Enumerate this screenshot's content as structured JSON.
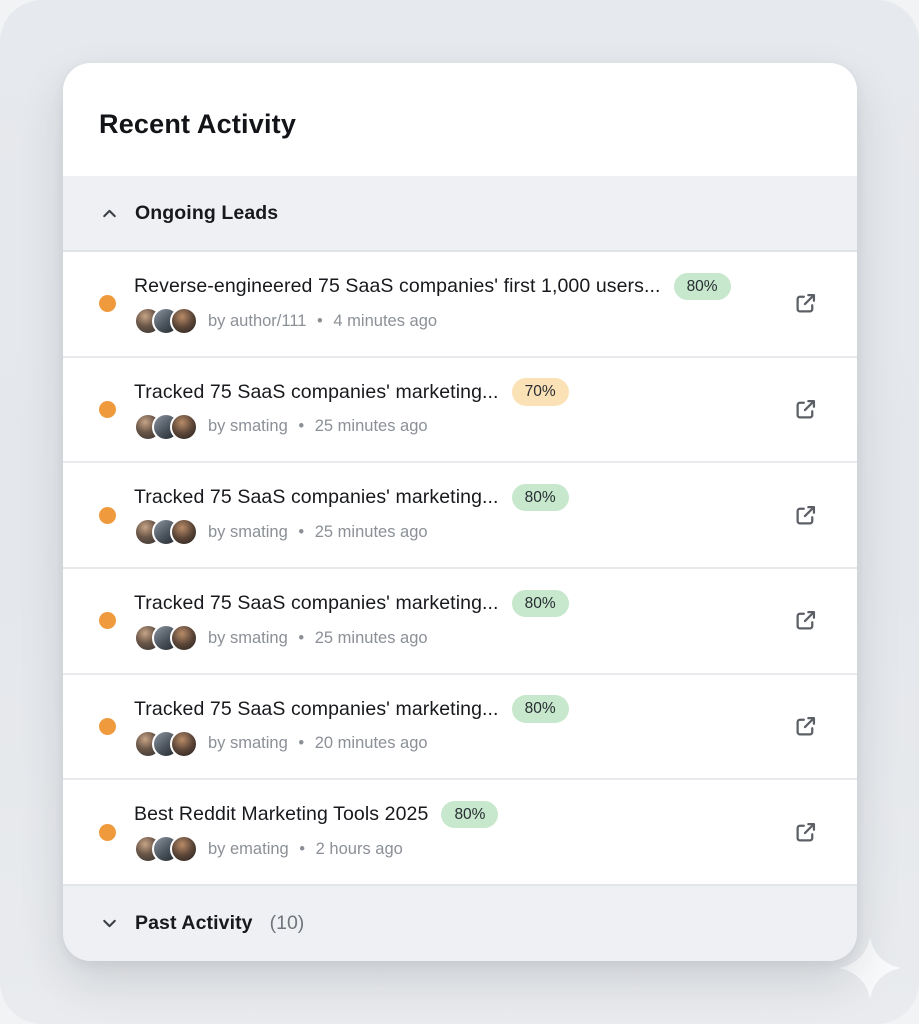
{
  "header": {
    "title": "Recent Activity"
  },
  "sections": {
    "ongoing": {
      "label": "Ongoing Leads"
    },
    "past": {
      "label": "Past Activity",
      "count": "(10)"
    }
  },
  "bullet": "•",
  "items": [
    {
      "title": "Reverse-engineered 75 SaaS companies' first 1,000 users...",
      "badge": {
        "label": "80%",
        "tone": "green"
      },
      "author": "by author/111",
      "time": "4 minutes ago",
      "avatar_count": 3
    },
    {
      "title": "Tracked 75 SaaS companies' marketing...",
      "badge": {
        "label": "70%",
        "tone": "orange"
      },
      "author": "by smating",
      "time": "25 minutes ago",
      "avatar_count": 3
    },
    {
      "title": "Tracked 75 SaaS companies' marketing...",
      "badge": {
        "label": "80%",
        "tone": "green"
      },
      "author": "by smating",
      "time": "25 minutes ago",
      "avatar_count": 3
    },
    {
      "title": "Tracked 75 SaaS companies' marketing...",
      "badge": {
        "label": "80%",
        "tone": "green"
      },
      "author": "by smating",
      "time": "25 minutes ago",
      "avatar_count": 3
    },
    {
      "title": "Tracked 75 SaaS companies' marketing...",
      "badge": {
        "label": "80%",
        "tone": "green"
      },
      "author": "by smating",
      "time": "20 minutes ago",
      "avatar_count": 3
    },
    {
      "title": "Best Reddit Marketing Tools 2025",
      "badge": {
        "label": "80%",
        "tone": "green"
      },
      "author": "by emating",
      "time": "2 hours ago",
      "avatar_count": 3
    }
  ],
  "colors": {
    "status_dot_orange": "#f09a3e",
    "badge_green_bg": "#c7e8cc",
    "badge_orange_bg": "#fbe2b6",
    "section_band_bg": "#eef0f4",
    "card_bg": "#ffffff",
    "title_text": "#17191d",
    "muted_text": "#8b9097"
  },
  "icons": {
    "ongoing_chevron": "chevron-up-icon",
    "past_chevron": "chevron-down-icon",
    "row_action": "external-link-icon",
    "background_decoration": "sparkle-icon"
  }
}
